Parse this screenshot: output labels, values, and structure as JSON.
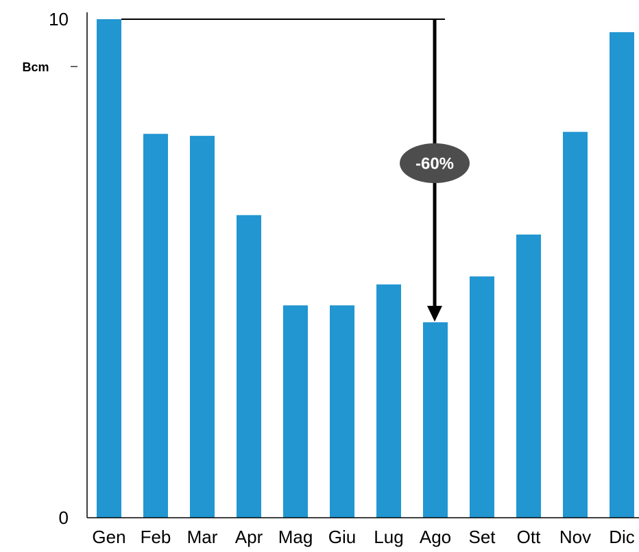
{
  "chart_data": {
    "type": "bar",
    "unit": "Bcm",
    "annotation": "-60%",
    "categories": [
      "Gen",
      "Feb",
      "Mar",
      "Apr",
      "Mag",
      "Giu",
      "Lug",
      "Ago",
      "Set",
      "Ott",
      "Nov",
      "Dic"
    ],
    "values": [
      10.0,
      7.7,
      7.66,
      6.07,
      4.26,
      4.26,
      4.68,
      3.92,
      4.84,
      5.68,
      7.74,
      9.74
    ],
    "color": "#2196d1",
    "ylim": [
      0,
      10
    ],
    "yticks": [
      0,
      10
    ],
    "grid": false
  }
}
